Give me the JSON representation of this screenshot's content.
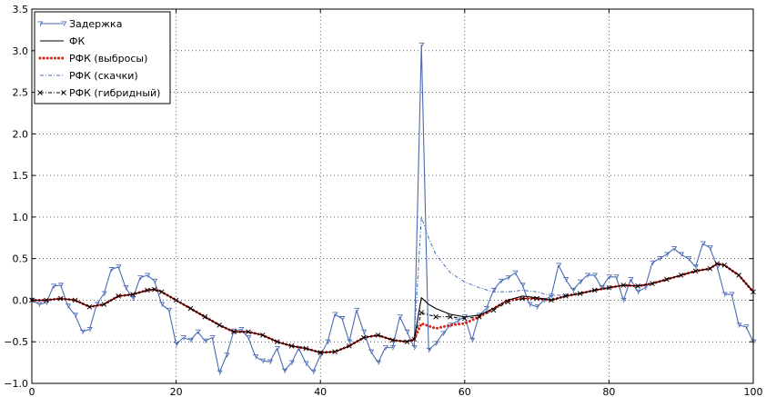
{
  "chart_data": {
    "type": "line",
    "title": "",
    "xlabel": "",
    "ylabel": "",
    "xlim": [
      0,
      100
    ],
    "ylim": [
      -1.0,
      3.5
    ],
    "xticks": [
      0,
      20,
      40,
      60,
      80,
      100
    ],
    "yticks": [
      -1.0,
      -0.5,
      0.0,
      0.5,
      1.0,
      1.5,
      2.0,
      2.5,
      3.0,
      3.5
    ],
    "x_tick_labels": [
      "0",
      "20",
      "40",
      "60",
      "80",
      "100"
    ],
    "y_tick_labels": [
      "−1.0",
      "−0.5",
      "0.0",
      "0.5",
      "1.0",
      "1.5",
      "2.0",
      "2.5",
      "3.0",
      "3.5"
    ],
    "grid": true,
    "legend_position": "top-left",
    "series": [
      {
        "name": "Задержка",
        "color": "#4a6bb3",
        "style": "solid-marker-tri",
        "x": [
          0,
          1,
          2,
          3,
          4,
          5,
          6,
          7,
          8,
          9,
          10,
          11,
          12,
          13,
          14,
          15,
          16,
          17,
          18,
          19,
          20,
          21,
          22,
          23,
          24,
          25,
          26,
          27,
          28,
          29,
          30,
          31,
          32,
          33,
          34,
          35,
          36,
          37,
          38,
          39,
          40,
          41,
          42,
          43,
          44,
          45,
          46,
          47,
          48,
          49,
          50,
          51,
          52,
          53,
          54,
          55,
          56,
          57,
          58,
          59,
          60,
          61,
          62,
          63,
          64,
          65,
          66,
          67,
          68,
          69,
          70,
          71,
          72,
          73,
          74,
          75,
          76,
          77,
          78,
          79,
          80,
          81,
          82,
          83,
          84,
          85,
          86,
          87,
          88,
          89,
          90,
          91,
          92,
          93,
          94,
          95,
          96,
          97,
          98,
          99,
          100
        ],
        "y": [
          0.0,
          -0.05,
          -0.03,
          0.17,
          0.18,
          -0.07,
          -0.18,
          -0.38,
          -0.35,
          -0.05,
          0.08,
          0.37,
          0.4,
          0.15,
          0.02,
          0.27,
          0.3,
          0.23,
          -0.05,
          -0.12,
          -0.53,
          -0.45,
          -0.48,
          -0.38,
          -0.49,
          -0.45,
          -0.87,
          -0.66,
          -0.37,
          -0.35,
          -0.45,
          -0.68,
          -0.73,
          -0.74,
          -0.58,
          -0.85,
          -0.75,
          -0.58,
          -0.76,
          -0.86,
          -0.66,
          -0.5,
          -0.17,
          -0.22,
          -0.5,
          -0.12,
          -0.38,
          -0.62,
          -0.75,
          -0.57,
          -0.57,
          -0.2,
          -0.38,
          -0.57,
          3.07,
          -0.6,
          -0.52,
          -0.4,
          -0.3,
          -0.25,
          -0.2,
          -0.48,
          -0.18,
          -0.1,
          0.12,
          0.23,
          0.27,
          0.33,
          0.18,
          -0.05,
          -0.08,
          0.0,
          0.05,
          0.42,
          0.25,
          0.12,
          0.22,
          0.3,
          0.3,
          0.15,
          0.28,
          0.28,
          0.0,
          0.25,
          0.1,
          0.15,
          0.45,
          0.5,
          0.55,
          0.62,
          0.55,
          0.5,
          0.4,
          0.68,
          0.63,
          0.4,
          0.07,
          0.07,
          -0.3,
          -0.32,
          -0.5
        ]
      },
      {
        "name": "ФК",
        "color": "#000000",
        "style": "solid",
        "x": [
          0,
          2,
          4,
          6,
          8,
          10,
          12,
          14,
          16,
          17,
          18,
          20,
          22,
          24,
          26,
          28,
          30,
          32,
          34,
          36,
          38,
          40,
          42,
          44,
          46,
          48,
          50,
          52,
          53,
          54,
          55,
          56,
          58,
          60,
          62,
          64,
          66,
          68,
          70,
          72,
          74,
          76,
          78,
          80,
          82,
          84,
          86,
          88,
          90,
          92,
          94,
          95,
          96,
          98,
          100
        ],
        "y": [
          0.0,
          0.0,
          0.02,
          0.0,
          -0.08,
          -0.05,
          0.05,
          0.07,
          0.12,
          0.13,
          0.1,
          0.0,
          -0.1,
          -0.2,
          -0.3,
          -0.38,
          -0.38,
          -0.42,
          -0.5,
          -0.55,
          -0.58,
          -0.63,
          -0.62,
          -0.55,
          -0.45,
          -0.42,
          -0.48,
          -0.5,
          -0.47,
          0.03,
          -0.05,
          -0.1,
          -0.17,
          -0.2,
          -0.18,
          -0.1,
          0.0,
          0.05,
          0.03,
          0.0,
          0.05,
          0.08,
          0.12,
          0.15,
          0.18,
          0.17,
          0.2,
          0.25,
          0.3,
          0.35,
          0.38,
          0.44,
          0.42,
          0.3,
          0.1
        ]
      },
      {
        "name": "РФК (выбросы)",
        "color": "#e8201a",
        "style": "dotted-thick",
        "x": [
          0,
          2,
          4,
          6,
          8,
          10,
          12,
          14,
          16,
          17,
          18,
          20,
          22,
          24,
          26,
          28,
          30,
          32,
          34,
          36,
          38,
          40,
          42,
          44,
          46,
          48,
          50,
          52,
          53,
          54,
          55,
          56,
          58,
          60,
          62,
          64,
          66,
          68,
          70,
          72,
          74,
          76,
          78,
          80,
          82,
          84,
          86,
          88,
          90,
          92,
          94,
          95,
          96,
          98,
          100
        ],
        "y": [
          0.0,
          0.0,
          0.02,
          0.0,
          -0.08,
          -0.05,
          0.05,
          0.07,
          0.12,
          0.13,
          0.1,
          0.0,
          -0.1,
          -0.2,
          -0.3,
          -0.38,
          -0.38,
          -0.42,
          -0.5,
          -0.55,
          -0.58,
          -0.63,
          -0.62,
          -0.55,
          -0.45,
          -0.42,
          -0.48,
          -0.5,
          -0.47,
          -0.28,
          -0.31,
          -0.34,
          -0.3,
          -0.28,
          -0.2,
          -0.1,
          0.0,
          0.02,
          0.02,
          0.0,
          0.05,
          0.08,
          0.12,
          0.15,
          0.18,
          0.17,
          0.2,
          0.25,
          0.3,
          0.35,
          0.38,
          0.44,
          0.42,
          0.3,
          0.1
        ]
      },
      {
        "name": "РФК (скачки)",
        "color": "#4a6bb3",
        "style": "dash-dot",
        "x": [
          0,
          2,
          4,
          6,
          8,
          10,
          12,
          14,
          16,
          17,
          18,
          20,
          22,
          24,
          26,
          28,
          30,
          32,
          34,
          36,
          38,
          40,
          42,
          44,
          46,
          48,
          50,
          52,
          53,
          54,
          55,
          56,
          58,
          60,
          62,
          64,
          66,
          68,
          70,
          72,
          74,
          76,
          78,
          80,
          82,
          84,
          86,
          88,
          90,
          92,
          94,
          95,
          96,
          98,
          100
        ],
        "y": [
          0.0,
          0.0,
          0.02,
          0.0,
          -0.08,
          -0.05,
          0.05,
          0.07,
          0.12,
          0.13,
          0.1,
          0.0,
          -0.1,
          -0.2,
          -0.3,
          -0.38,
          -0.38,
          -0.42,
          -0.5,
          -0.55,
          -0.58,
          -0.63,
          -0.62,
          -0.55,
          -0.45,
          -0.42,
          -0.48,
          -0.5,
          -0.47,
          1.0,
          0.75,
          0.55,
          0.33,
          0.22,
          0.15,
          0.1,
          0.1,
          0.12,
          0.1,
          0.05,
          0.07,
          0.09,
          0.12,
          0.15,
          0.18,
          0.17,
          0.2,
          0.25,
          0.3,
          0.35,
          0.38,
          0.44,
          0.42,
          0.3,
          0.1
        ]
      },
      {
        "name": "РФК (гибридный)",
        "color": "#000000",
        "style": "dash-dot-x",
        "x": [
          0,
          2,
          4,
          6,
          8,
          10,
          12,
          14,
          16,
          17,
          18,
          20,
          22,
          24,
          26,
          28,
          30,
          32,
          34,
          36,
          38,
          40,
          42,
          44,
          46,
          48,
          50,
          52,
          53,
          54,
          56,
          58,
          60,
          62,
          64,
          66,
          68,
          70,
          72,
          74,
          76,
          78,
          80,
          82,
          84,
          86,
          88,
          90,
          92,
          94,
          95,
          96,
          98,
          100
        ],
        "y": [
          0.0,
          0.0,
          0.02,
          0.0,
          -0.08,
          -0.05,
          0.05,
          0.07,
          0.12,
          0.13,
          0.1,
          0.0,
          -0.1,
          -0.2,
          -0.3,
          -0.38,
          -0.38,
          -0.42,
          -0.5,
          -0.55,
          -0.58,
          -0.63,
          -0.62,
          -0.55,
          -0.45,
          -0.42,
          -0.48,
          -0.5,
          -0.47,
          -0.15,
          -0.2,
          -0.2,
          -0.22,
          -0.2,
          -0.12,
          -0.02,
          0.02,
          0.02,
          0.0,
          0.05,
          0.08,
          0.12,
          0.15,
          0.18,
          0.17,
          0.2,
          0.25,
          0.3,
          0.35,
          0.38,
          0.44,
          0.42,
          0.3,
          0.1
        ]
      }
    ]
  }
}
